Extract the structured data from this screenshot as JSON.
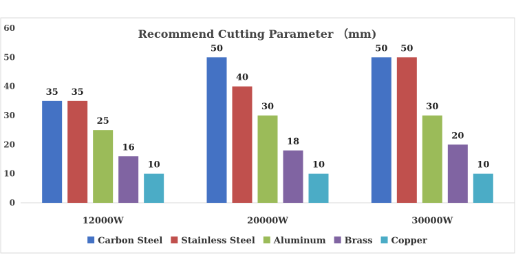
{
  "chart_data": {
    "type": "bar",
    "title": "Recommend Cutting Parameter （mm)",
    "xlabel": "",
    "ylabel": "",
    "categories": [
      "12000W",
      "20000W",
      "30000W"
    ],
    "series": [
      {
        "name": "Carbon Steel",
        "values": [
          35,
          50,
          50
        ],
        "color": "#4472C4"
      },
      {
        "name": "Stainless Steel",
        "values": [
          35,
          40,
          50
        ],
        "color": "#C0504D"
      },
      {
        "name": "Aluminum",
        "values": [
          25,
          30,
          30
        ],
        "color": "#9BBB59"
      },
      {
        "name": "Brass",
        "values": [
          16,
          18,
          20
        ],
        "color": "#8064A2"
      },
      {
        "name": "Copper",
        "values": [
          10,
          10,
          10
        ],
        "color": "#4BACC6"
      }
    ],
    "ylim": [
      0,
      60
    ],
    "yticks": [
      0,
      10,
      20,
      30,
      40,
      50,
      60
    ],
    "grid": false,
    "legend_position": "bottom"
  }
}
